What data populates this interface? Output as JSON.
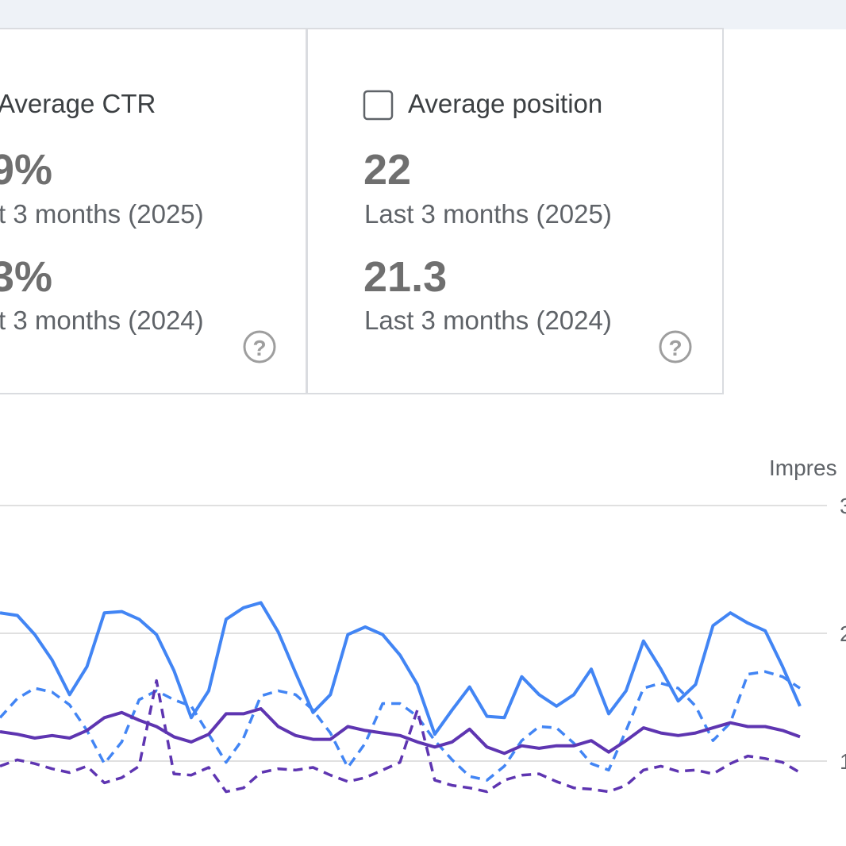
{
  "cards": [
    {
      "label": "Average CTR",
      "current_value": "9%",
      "current_period": "t 3 months (2025)",
      "previous_value": "3%",
      "previous_period": "t 3 months (2024)"
    },
    {
      "label": "Average position",
      "current_value": "22",
      "current_period": "Last 3 months (2025)",
      "previous_value": "21.3",
      "previous_period": "Last 3 months (2024)"
    }
  ],
  "chart_data": {
    "type": "line",
    "y_axis_label": "Impres",
    "ylim": [
      0.6,
      3
    ],
    "yticks": [
      1,
      2,
      3
    ],
    "grid": true,
    "series": [
      {
        "color": "#4285f4",
        "dashed": false,
        "values": [
          2.16,
          2.14,
          1.99,
          1.79,
          1.52,
          1.74,
          2.16,
          2.17,
          2.11,
          1.99,
          1.71,
          1.34,
          1.55,
          2.11,
          2.2,
          2.24,
          2.01,
          1.69,
          1.38,
          1.52,
          1.99,
          2.05,
          1.99,
          1.83,
          1.6,
          1.21,
          1.4,
          1.58,
          1.35,
          1.34,
          1.66,
          1.52,
          1.43,
          1.52,
          1.72,
          1.37,
          1.55,
          1.94,
          1.72,
          1.47,
          1.6,
          2.06,
          2.16,
          2.08,
          2.02,
          1.74,
          1.43
        ]
      },
      {
        "color": "#4285f4",
        "dashed": true,
        "values": [
          1.34,
          1.49,
          1.57,
          1.54,
          1.44,
          1.24,
          0.98,
          1.15,
          1.48,
          1.55,
          1.48,
          1.43,
          1.21,
          0.99,
          1.18,
          1.51,
          1.55,
          1.52,
          1.4,
          1.22,
          0.95,
          1.14,
          1.45,
          1.45,
          1.35,
          1.16,
          1.01,
          0.88,
          0.85,
          0.96,
          1.16,
          1.27,
          1.26,
          1.14,
          0.98,
          0.93,
          1.24,
          1.57,
          1.61,
          1.57,
          1.43,
          1.16,
          1.3,
          1.68,
          1.7,
          1.66,
          1.57
        ]
      },
      {
        "color": "#5e35b1",
        "dashed": false,
        "values": [
          1.23,
          1.21,
          1.18,
          1.2,
          1.18,
          1.24,
          1.34,
          1.38,
          1.32,
          1.27,
          1.19,
          1.15,
          1.21,
          1.37,
          1.37,
          1.41,
          1.27,
          1.2,
          1.17,
          1.17,
          1.27,
          1.24,
          1.22,
          1.2,
          1.15,
          1.11,
          1.15,
          1.25,
          1.11,
          1.06,
          1.12,
          1.1,
          1.12,
          1.12,
          1.16,
          1.07,
          1.16,
          1.26,
          1.22,
          1.2,
          1.22,
          1.26,
          1.3,
          1.27,
          1.27,
          1.24,
          1.19
        ]
      },
      {
        "color": "#5e35b1",
        "dashed": true,
        "values": [
          0.96,
          1.01,
          0.98,
          0.94,
          0.91,
          0.96,
          0.83,
          0.87,
          0.96,
          1.63,
          0.9,
          0.89,
          0.95,
          0.76,
          0.79,
          0.91,
          0.94,
          0.93,
          0.95,
          0.89,
          0.84,
          0.87,
          0.93,
          0.99,
          1.4,
          0.85,
          0.81,
          0.79,
          0.76,
          0.85,
          0.89,
          0.9,
          0.84,
          0.79,
          0.78,
          0.76,
          0.81,
          0.93,
          0.96,
          0.92,
          0.93,
          0.9,
          0.98,
          1.04,
          1.02,
          0.99,
          0.91
        ]
      }
    ]
  }
}
